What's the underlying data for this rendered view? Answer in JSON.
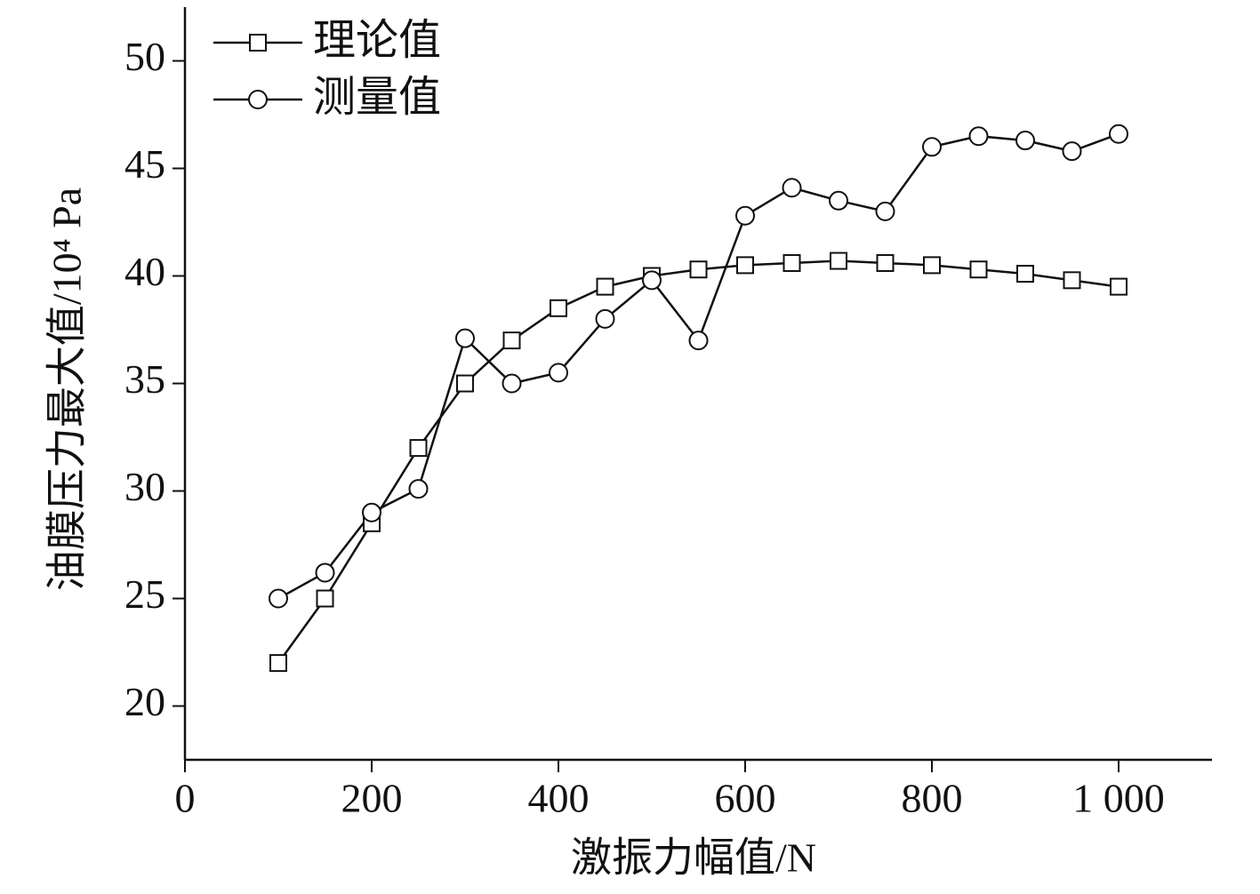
{
  "chart_data": {
    "type": "line",
    "x_label": "激振力幅值/N",
    "y_label": "油膜压力最大值/10⁴ Pa",
    "x": [
      100,
      150,
      200,
      250,
      300,
      350,
      400,
      450,
      500,
      550,
      600,
      650,
      700,
      750,
      800,
      850,
      900,
      950,
      1000
    ],
    "series": [
      {
        "name": "理论值",
        "color": "#111111",
        "marker": "square",
        "values": [
          22,
          25,
          28.5,
          32,
          35,
          37,
          38.5,
          39.5,
          40,
          40.3,
          40.5,
          40.6,
          40.7,
          40.6,
          40.5,
          40.3,
          40.1,
          39.8,
          39.5
        ]
      },
      {
        "name": "测量值",
        "color": "#111111",
        "marker": "circle",
        "values": [
          25,
          26.2,
          29,
          30.1,
          37.1,
          35,
          35.5,
          38,
          39.8,
          37,
          42.8,
          44.1,
          43.5,
          43,
          46,
          46.5,
          46.3,
          45.8,
          46.6
        ]
      }
    ],
    "xlim": [
      0,
      1100
    ],
    "xticks": [
      0,
      200,
      400,
      600,
      800,
      {
        "value": 1000,
        "label": "1 000"
      }
    ],
    "ylim": [
      17.5,
      52.5
    ],
    "yticks": [
      20,
      25,
      30,
      35,
      40,
      45,
      50
    ],
    "legend": "top-left",
    "grid": false
  }
}
